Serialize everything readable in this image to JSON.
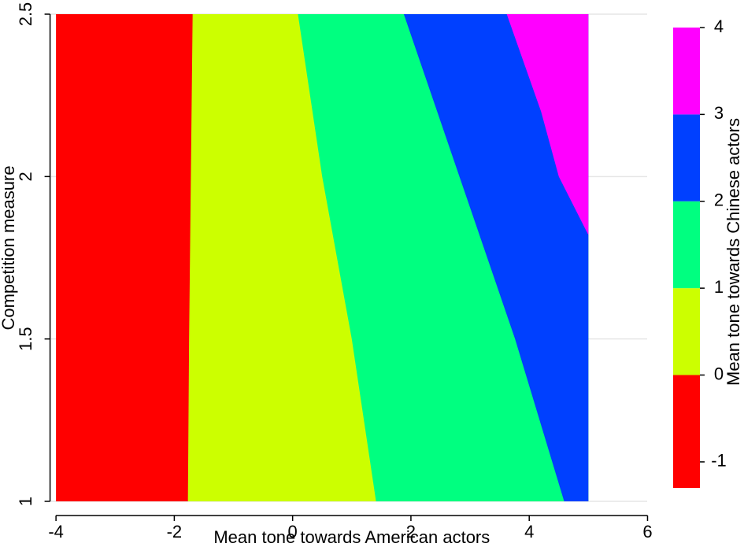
{
  "chart_data": {
    "type": "contour",
    "xlabel": "Mean tone towards American actors",
    "ylabel": "Competition measure",
    "zlabel": "Mean tone towards Chinese actors",
    "xlim": [
      -4.1,
      6.1
    ],
    "ylim": [
      1,
      2.5
    ],
    "xticks": [
      -4,
      -2,
      0,
      2,
      4,
      6
    ],
    "yticks": [
      1,
      1.5,
      2,
      2.5
    ],
    "grid": true,
    "x_range": [
      -4,
      5
    ],
    "zlim": [
      -1.3,
      4
    ],
    "zticks": [
      -1,
      0,
      1,
      2,
      3,
      4
    ],
    "colors": [
      "#ff0000",
      "#ccff00",
      "#00ff80",
      "#0040ff",
      "#ff00ff"
    ],
    "boundaries": [
      {
        "level": 0,
        "x": [
          -1.69,
          -1.72,
          -1.75,
          -1.77
        ],
        "y": [
          2.5,
          2.0,
          1.5,
          1
        ]
      },
      {
        "level": 1,
        "x": [
          0.09,
          0.5,
          1.0,
          1.41
        ],
        "y": [
          2.5,
          2.0,
          1.5,
          1
        ]
      },
      {
        "level": 2,
        "x": [
          1.88,
          2.82,
          3.76,
          4.59
        ],
        "y": [
          2.5,
          2.0,
          1.5,
          1
        ]
      },
      {
        "level": 3,
        "x": [
          3.62,
          4.2,
          4.5,
          5
        ],
        "y": [
          2.5,
          2.2,
          2.0,
          1.82
        ]
      }
    ]
  }
}
